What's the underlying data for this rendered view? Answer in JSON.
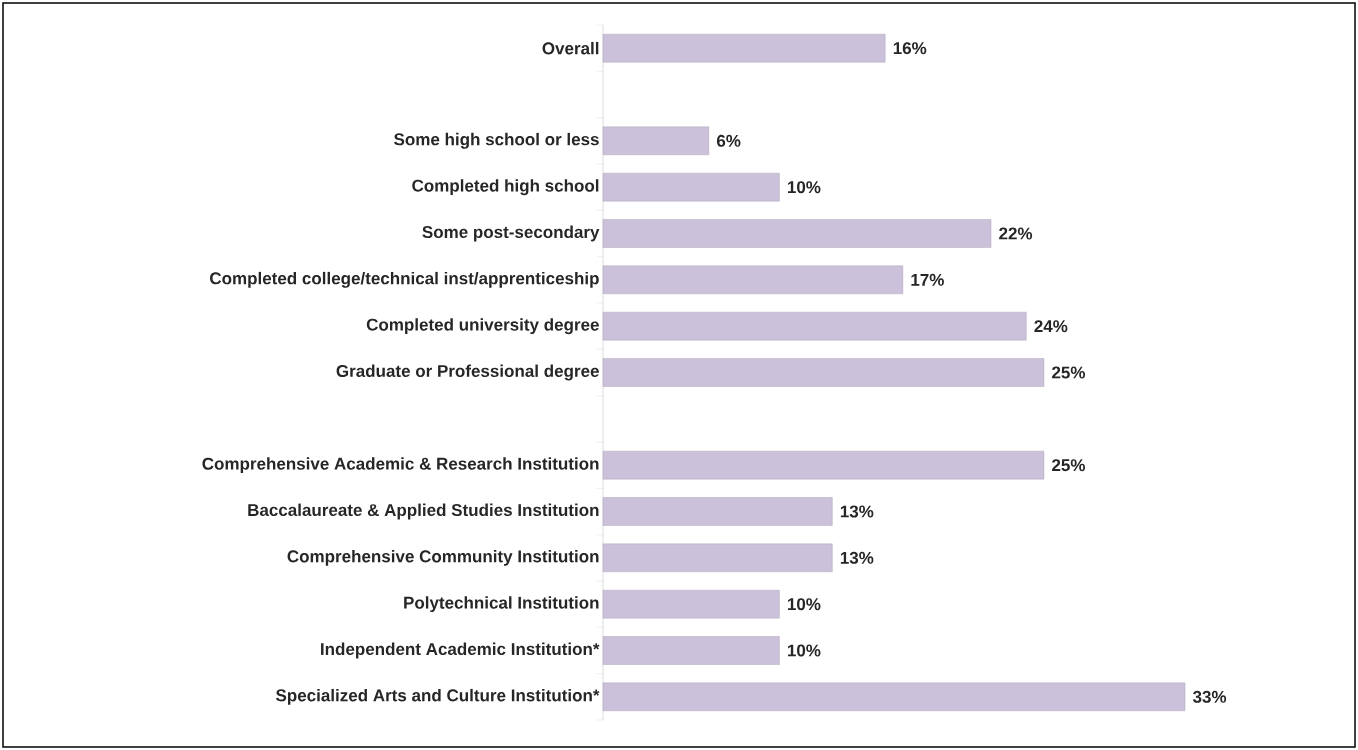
{
  "chart_data": {
    "type": "bar",
    "orientation": "horizontal",
    "color": "#ccc1da",
    "categories": [
      "Overall",
      null,
      "Some high school or less",
      "Completed high school",
      "Some post-secondary",
      "Completed college/technical inst/apprenticeship",
      "Completed university degree",
      "Graduate or Professional degree",
      null,
      "Comprehensive Academic & Research Institution",
      "Baccalaureate & Applied Studies Institution",
      "Comprehensive Community Institution",
      "Polytechnical Institution",
      "Independent Academic Institution*",
      "Specialized Arts and Culture Institution*"
    ],
    "values": [
      16,
      null,
      6,
      10,
      22,
      17,
      24,
      25,
      null,
      25,
      13,
      13,
      10,
      10,
      33
    ],
    "value_labels": [
      "16%",
      null,
      "6%",
      "10%",
      "22%",
      "17%",
      "24%",
      "25%",
      null,
      "25%",
      "13%",
      "13%",
      "10%",
      "10%",
      "33%"
    ]
  }
}
